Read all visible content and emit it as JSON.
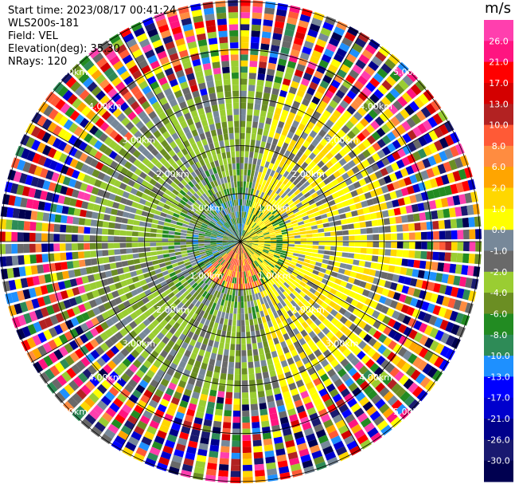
{
  "header": {
    "start_time": "Start time: 2023/08/17 00:41:24",
    "instrument": "WLS200s-181",
    "field": "Field: VEL",
    "elevation": "Elevation(deg): 35.30",
    "nrays": "NRays: 120"
  },
  "chart_data": {
    "type": "polar-ppi",
    "field": "VEL",
    "unit": "m/s",
    "range_rings_km": [
      1.0,
      2.0,
      3.0,
      4.0,
      5.0
    ],
    "ring_labels": [
      "1.00km",
      "2.00km",
      "3.00km",
      "4.00km",
      "5.00km"
    ],
    "colorbar": {
      "ticks": [
        "26.0",
        "21.0",
        "17.0",
        "13.0",
        "10.0",
        "8.0",
        "6.0",
        "2.0",
        "1.0",
        "0.0",
        "-1.0",
        "-2.0",
        "-4.0",
        "-6.0",
        "-8.0",
        "-10.0",
        "-13.0",
        "-17.0",
        "-21.0",
        "-26.0",
        "-30.0"
      ],
      "colors": [
        "#ff3fae",
        "#ff1480",
        "#ff0000",
        "#d40000",
        "#b22222",
        "#ff5a36",
        "#ff8c40",
        "#ffa500",
        "#ffd700",
        "#ffff00",
        "#778899",
        "#696969",
        "#9acd32",
        "#6b8e23",
        "#228b22",
        "#2e8b57",
        "#1e90ff",
        "#0000ff",
        "#0000cd",
        "#00008b",
        "#191970",
        "#000050"
      ]
    }
  }
}
